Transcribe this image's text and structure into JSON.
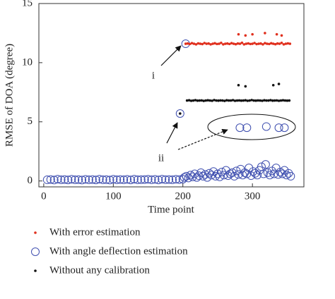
{
  "chart_data": {
    "type": "scatter",
    "x_label": "Time point",
    "y_label": "RMSE of DOA (degree)",
    "xlim": [
      -7,
      374
    ],
    "ylim": [
      -0.5,
      15
    ],
    "xticks": [
      0,
      100,
      200,
      300
    ],
    "yticks": [
      0,
      5,
      10,
      15
    ],
    "annotations": [
      "i",
      "ii"
    ],
    "series": [
      {
        "name": "With error estimation",
        "color": "#e0301e",
        "marker": "dot",
        "x": [
          204,
          207,
          210,
          213,
          216,
          219,
          222,
          225,
          228,
          231,
          234,
          237,
          240,
          243,
          246,
          249,
          252,
          255,
          258,
          261,
          264,
          267,
          270,
          273,
          276,
          279,
          282,
          285,
          288,
          291,
          294,
          297,
          300,
          303,
          306,
          309,
          312,
          315,
          318,
          321,
          324,
          327,
          330,
          333,
          336,
          339,
          342,
          345,
          348,
          351,
          354,
          280,
          290,
          300,
          318,
          335,
          342
        ],
        "values": [
          11.6,
          11.62,
          11.58,
          11.65,
          11.6,
          11.55,
          11.63,
          11.6,
          11.57,
          11.66,
          11.6,
          11.62,
          11.55,
          11.6,
          11.64,
          11.58,
          11.6,
          11.67,
          11.55,
          11.6,
          11.62,
          11.58,
          11.65,
          11.6,
          11.56,
          11.62,
          11.6,
          11.68,
          11.55,
          11.6,
          11.63,
          11.58,
          11.6,
          11.66,
          11.57,
          11.6,
          11.62,
          11.55,
          11.65,
          11.6,
          11.58,
          11.64,
          11.6,
          11.56,
          11.62,
          11.6,
          11.67,
          11.55,
          11.6,
          11.63,
          11.6,
          12.4,
          12.3,
          12.4,
          12.5,
          12.4,
          12.3
        ]
      },
      {
        "name": "With angle deflection estimation",
        "color": "#4050b0",
        "marker": "circle",
        "x": [
          5,
          10,
          15,
          20,
          25,
          30,
          35,
          40,
          45,
          50,
          55,
          60,
          65,
          70,
          75,
          80,
          85,
          90,
          95,
          100,
          105,
          110,
          115,
          120,
          125,
          130,
          135,
          140,
          145,
          150,
          155,
          160,
          165,
          170,
          175,
          180,
          185,
          190,
          195,
          200,
          202,
          205,
          208,
          211,
          214,
          217,
          220,
          223,
          226,
          229,
          232,
          235,
          238,
          241,
          244,
          247,
          250,
          253,
          256,
          259,
          262,
          265,
          268,
          271,
          274,
          277,
          280,
          283,
          286,
          289,
          292,
          295,
          298,
          301,
          304,
          307,
          310,
          313,
          316,
          319,
          322,
          325,
          328,
          331,
          334,
          337,
          340,
          343,
          346,
          349,
          352,
          355,
          282,
          292,
          320,
          338,
          346,
          196,
          204
        ],
        "values": [
          0.1,
          0.12,
          0.08,
          0.15,
          0.1,
          0.12,
          0.09,
          0.14,
          0.1,
          0.11,
          0.08,
          0.13,
          0.1,
          0.12,
          0.09,
          0.15,
          0.1,
          0.11,
          0.08,
          0.14,
          0.1,
          0.12,
          0.1,
          0.13,
          0.09,
          0.15,
          0.1,
          0.11,
          0.12,
          0.14,
          0.1,
          0.13,
          0.09,
          0.15,
          0.11,
          0.12,
          0.1,
          0.14,
          0.12,
          0.15,
          0.3,
          0.4,
          0.25,
          0.5,
          0.35,
          0.6,
          0.3,
          0.45,
          0.7,
          0.4,
          0.55,
          0.3,
          0.65,
          0.5,
          0.8,
          0.4,
          0.6,
          0.35,
          0.75,
          0.5,
          0.9,
          0.45,
          0.6,
          0.7,
          0.4,
          0.85,
          0.55,
          1.0,
          0.5,
          0.7,
          0.6,
          1.1,
          0.45,
          0.8,
          0.65,
          0.5,
          0.9,
          1.2,
          0.6,
          1.4,
          0.7,
          0.5,
          0.85,
          0.6,
          1.1,
          0.55,
          0.75,
          0.6,
          0.9,
          0.5,
          0.65,
          0.4,
          4.5,
          4.5,
          4.6,
          4.5,
          4.5,
          5.7,
          11.6
        ]
      },
      {
        "name": "Without any calibration",
        "color": "#111111",
        "marker": "dot",
        "x": [
          206,
          209,
          212,
          215,
          218,
          221,
          224,
          227,
          230,
          233,
          236,
          239,
          242,
          245,
          248,
          251,
          254,
          257,
          260,
          263,
          266,
          269,
          272,
          275,
          278,
          281,
          284,
          287,
          290,
          293,
          296,
          299,
          302,
          305,
          308,
          311,
          314,
          317,
          320,
          323,
          326,
          329,
          332,
          335,
          338,
          341,
          344,
          347,
          350,
          353,
          280,
          290,
          330,
          338,
          196
        ],
        "values": [
          6.8,
          6.82,
          6.78,
          6.8,
          6.83,
          6.79,
          6.8,
          6.81,
          6.77,
          6.8,
          6.82,
          6.8,
          6.78,
          6.84,
          6.8,
          6.79,
          6.81,
          6.8,
          6.77,
          6.82,
          6.8,
          6.8,
          6.83,
          6.78,
          6.8,
          6.81,
          6.79,
          6.8,
          6.82,
          6.78,
          6.8,
          6.84,
          6.8,
          6.79,
          6.81,
          6.8,
          6.78,
          6.82,
          6.8,
          6.8,
          6.83,
          6.79,
          6.8,
          6.81,
          6.78,
          6.8,
          6.82,
          6.8,
          6.79,
          6.8,
          8.1,
          8.0,
          8.1,
          8.2,
          5.7
        ]
      }
    ]
  }
}
